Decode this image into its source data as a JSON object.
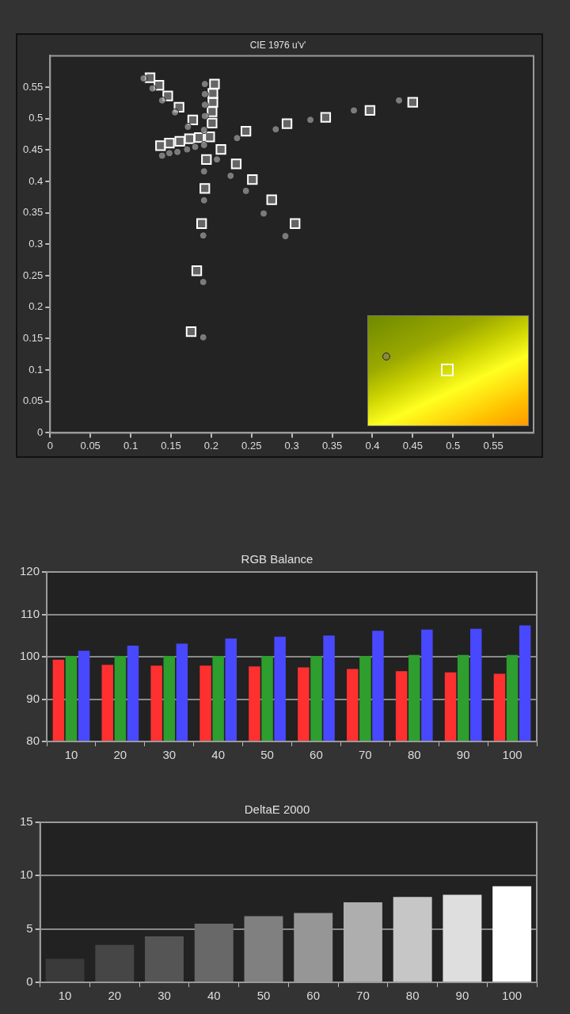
{
  "chart_data": [
    {
      "type": "scatter",
      "title": "CIE 1976 u'v'",
      "xlim": [
        0,
        0.6
      ],
      "ylim": [
        0,
        0.6
      ],
      "xticks": [
        0,
        0.05,
        0.1,
        0.15,
        0.2,
        0.25,
        0.3,
        0.35,
        0.4,
        0.45,
        0.5,
        0.55
      ],
      "yticks": [
        0,
        0.05,
        0.1,
        0.15,
        0.2,
        0.25,
        0.3,
        0.35,
        0.4,
        0.45,
        0.5,
        0.55
      ],
      "grid": false,
      "series": [
        {
          "marker": "circle",
          "color": "#9a9a9a",
          "x": [
            0.116,
            0.127,
            0.139,
            0.155,
            0.171,
            0.191,
            0.139,
            0.148,
            0.158,
            0.17,
            0.18,
            0.192,
            0.192,
            0.192,
            0.192,
            0.191,
            0.191,
            0.191,
            0.19,
            0.19,
            0.19,
            0.207,
            0.224,
            0.243,
            0.265,
            0.292,
            0.232,
            0.28,
            0.323,
            0.377,
            0.433
          ],
          "values": [
            0.564,
            0.548,
            0.529,
            0.51,
            0.487,
            0.458,
            0.441,
            0.445,
            0.447,
            0.451,
            0.455,
            0.555,
            0.539,
            0.522,
            0.504,
            0.482,
            0.416,
            0.37,
            0.314,
            0.24,
            0.152,
            0.435,
            0.409,
            0.385,
            0.349,
            0.313,
            0.469,
            0.483,
            0.498,
            0.513,
            0.529
          ]
        },
        {
          "marker": "square",
          "color": "#ffffff",
          "x": [
            0.124,
            0.135,
            0.146,
            0.16,
            0.177,
            0.198,
            0.137,
            0.148,
            0.161,
            0.173,
            0.185,
            0.204,
            0.202,
            0.202,
            0.201,
            0.201,
            0.194,
            0.192,
            0.188,
            0.182,
            0.175,
            0.212,
            0.231,
            0.251,
            0.275,
            0.304,
            0.243,
            0.294,
            0.342,
            0.397,
            0.45
          ],
          "values": [
            0.565,
            0.553,
            0.536,
            0.518,
            0.498,
            0.471,
            0.457,
            0.461,
            0.464,
            0.468,
            0.47,
            0.555,
            0.54,
            0.526,
            0.511,
            0.493,
            0.435,
            0.389,
            0.333,
            0.258,
            0.161,
            0.451,
            0.428,
            0.403,
            0.371,
            0.333,
            0.48,
            0.492,
            0.502,
            0.513,
            0.526
          ]
        }
      ]
    },
    {
      "type": "bar",
      "title": "RGB Balance",
      "categories": [
        "10",
        "20",
        "30",
        "40",
        "50",
        "60",
        "70",
        "80",
        "90",
        "100"
      ],
      "ylim": [
        80,
        120
      ],
      "yticks": [
        80,
        90,
        100,
        110,
        120
      ],
      "grid": "y",
      "series": [
        {
          "color": "#ff3030",
          "values": [
            99.3,
            98.1,
            97.9,
            97.9,
            97.7,
            97.5,
            97.1,
            96.6,
            96.3,
            96.0
          ]
        },
        {
          "color": "#2e9e2e",
          "values": [
            100.2,
            100.2,
            100.2,
            100.2,
            100.2,
            100.2,
            100.2,
            100.4,
            100.4,
            100.4
          ]
        },
        {
          "color": "#4848ff",
          "values": [
            101.4,
            102.6,
            103.1,
            104.3,
            104.7,
            105.0,
            106.1,
            106.4,
            106.6,
            107.4
          ]
        }
      ]
    },
    {
      "type": "bar",
      "title": "DeltaE 2000",
      "categories": [
        "10",
        "20",
        "30",
        "40",
        "50",
        "60",
        "70",
        "80",
        "90",
        "100"
      ],
      "ylim": [
        0,
        15
      ],
      "yticks": [
        0,
        5,
        10,
        15
      ],
      "grid": "y",
      "values": [
        2.2,
        3.5,
        4.3,
        5.5,
        6.2,
        6.5,
        7.5,
        8.0,
        8.2,
        9.0
      ],
      "colors": [
        "#3a3a3a",
        "#464646",
        "#555555",
        "#686868",
        "#808080",
        "#969696",
        "#aeaeae",
        "#c6c6c6",
        "#dedede",
        "#ffffff"
      ]
    }
  ]
}
